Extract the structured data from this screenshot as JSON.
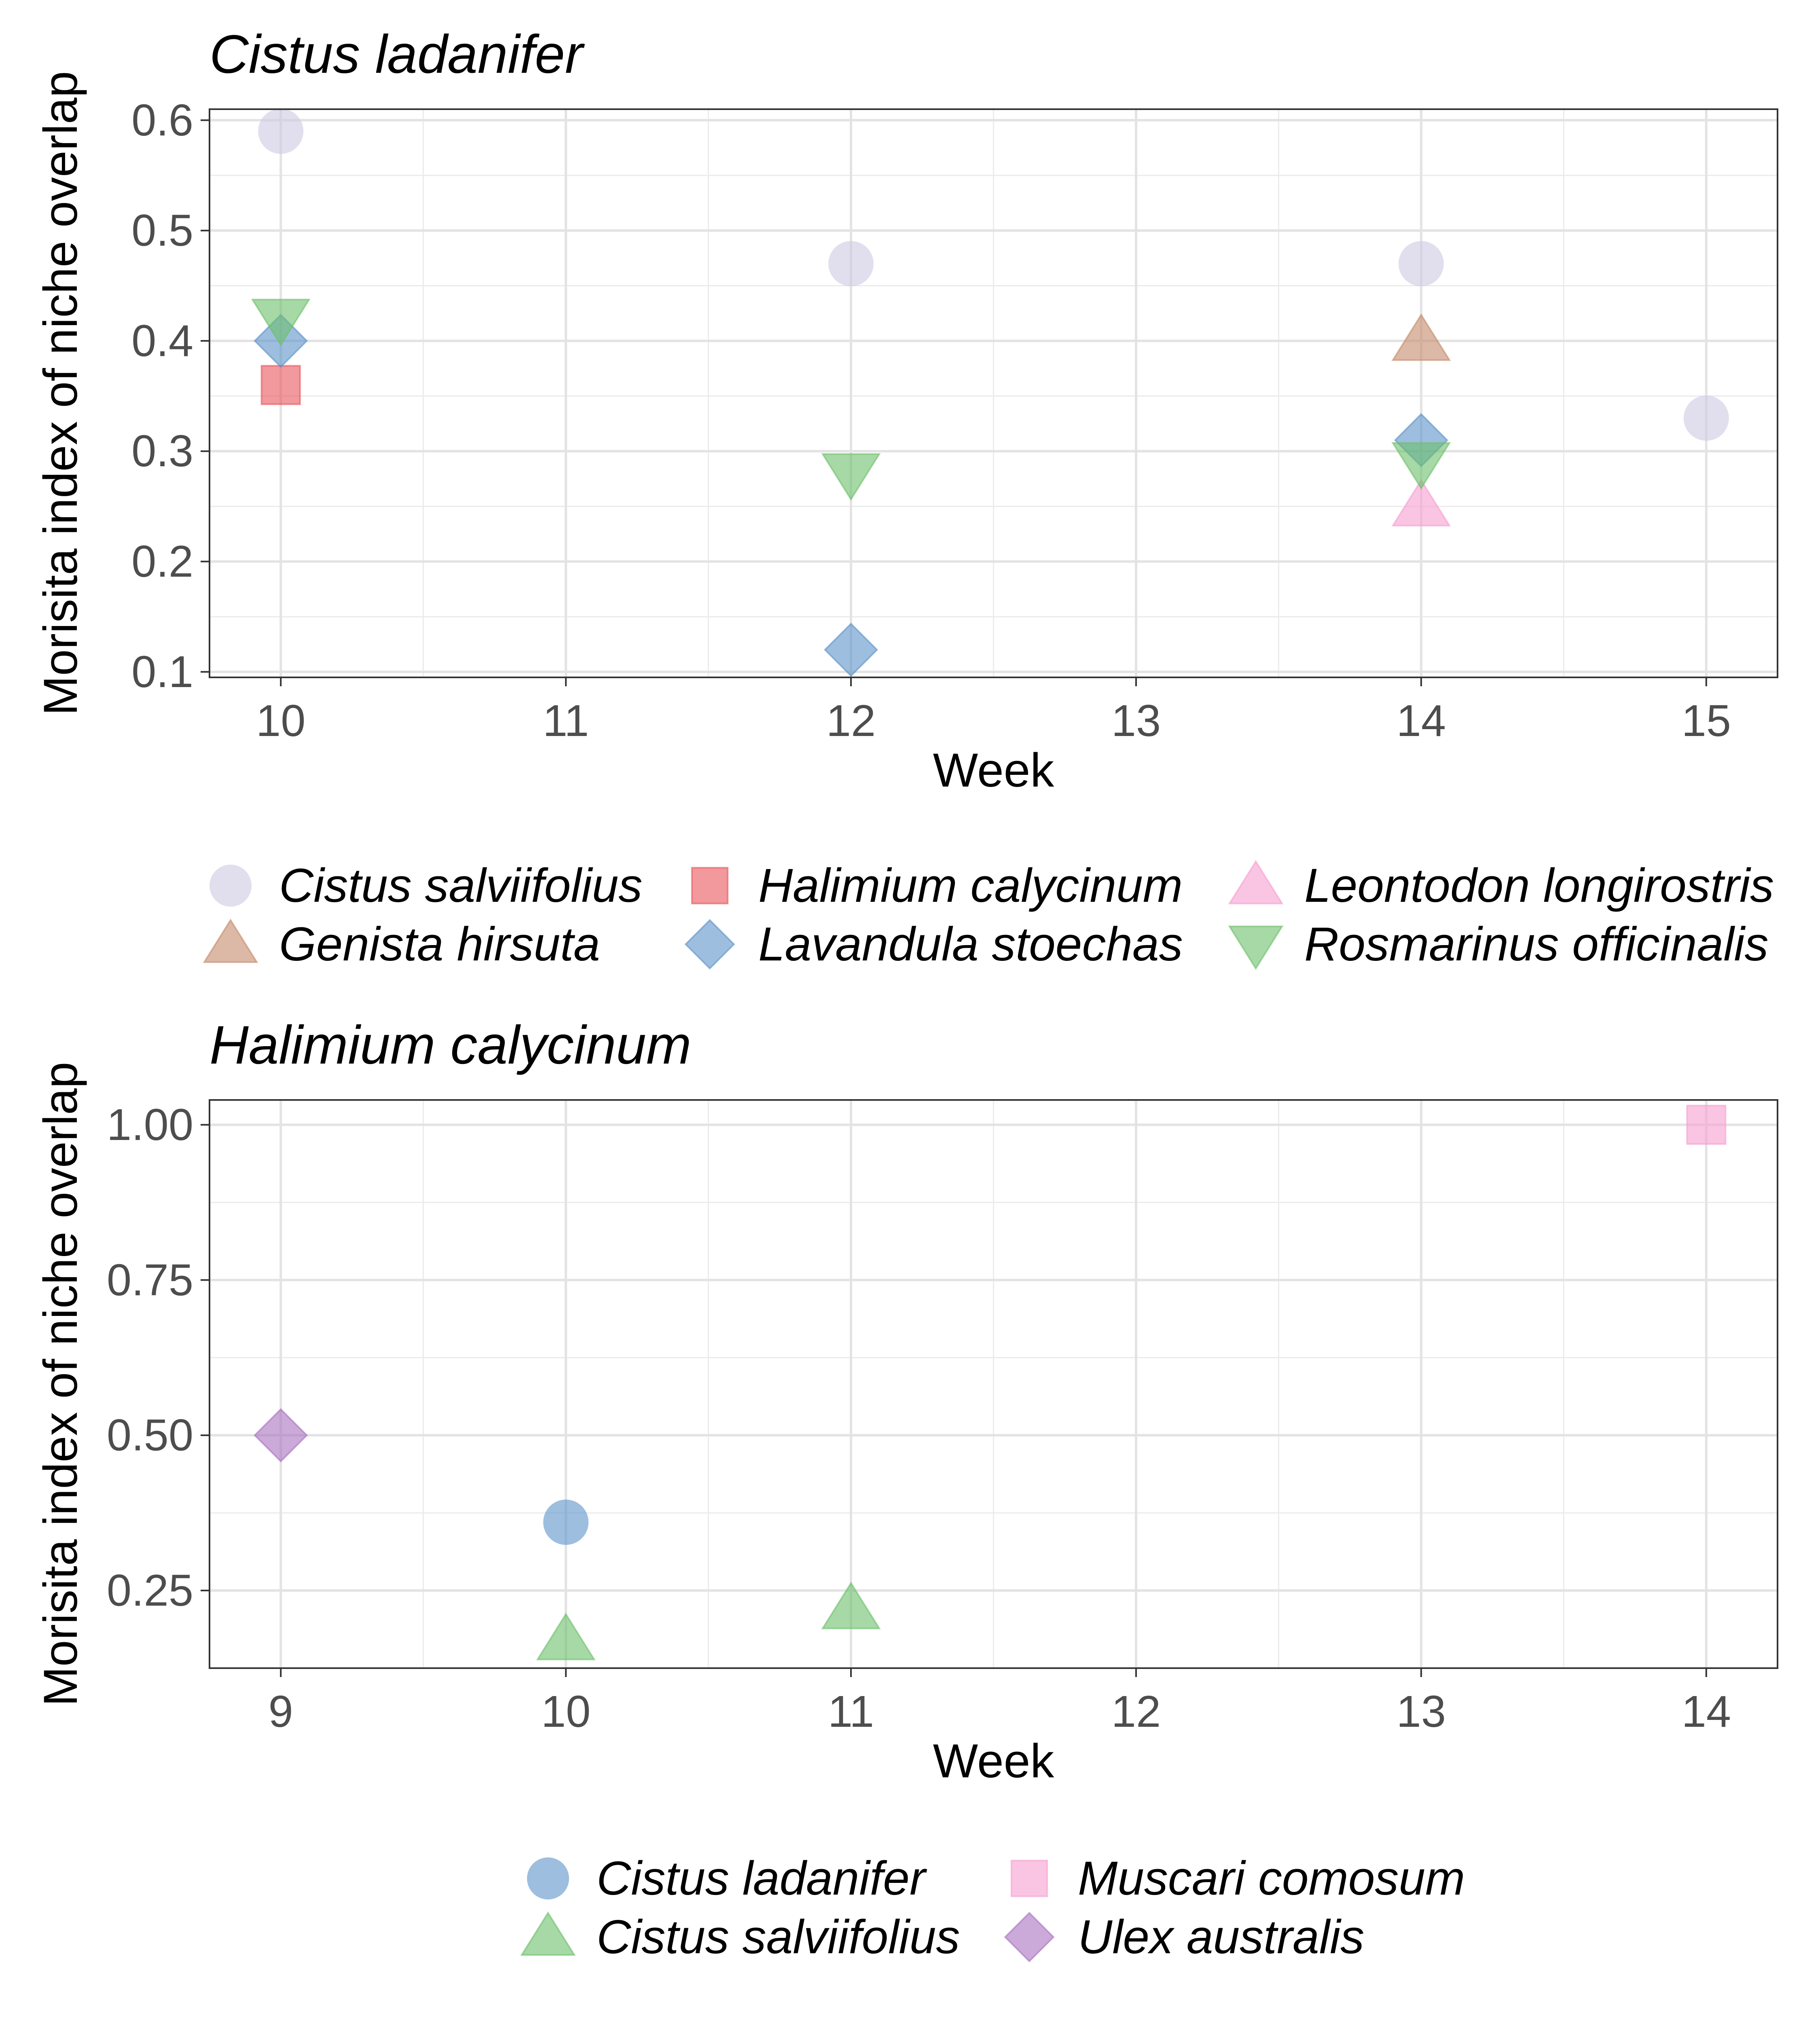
{
  "chart_data": [
    {
      "type": "scatter",
      "title": "Cistus ladanifer",
      "xlabel": "Week",
      "ylabel": "Morisita index of niche overlap",
      "xlim": [
        9.75,
        15.25
      ],
      "ylim": [
        0.095,
        0.61
      ],
      "xticks": [
        10,
        11,
        12,
        13,
        14,
        15
      ],
      "xtick_labels": [
        "10",
        "11",
        "12",
        "13",
        "14",
        "15"
      ],
      "yticks": [
        0.1,
        0.2,
        0.3,
        0.4,
        0.5,
        0.6
      ],
      "ytick_labels": [
        "0.1",
        "0.2",
        "0.3",
        "0.4",
        "0.5",
        "0.6"
      ],
      "grid": true,
      "legend_position": "bottom",
      "series": [
        {
          "name": "Cistus salviifolius",
          "marker": "circle",
          "color": "#cdc9e3",
          "points": [
            {
              "x": 10,
              "y": 0.59
            },
            {
              "x": 12,
              "y": 0.47
            },
            {
              "x": 14,
              "y": 0.47
            },
            {
              "x": 15,
              "y": 0.33
            }
          ]
        },
        {
          "name": "Genista hirsuta",
          "marker": "triangle-up",
          "color": "#c58b6b",
          "points": [
            {
              "x": 14,
              "y": 0.4
            }
          ]
        },
        {
          "name": "Halimium calycinum",
          "marker": "square",
          "color": "#e8555a",
          "points": [
            {
              "x": 10,
              "y": 0.36
            }
          ]
        },
        {
          "name": "Lavandula stoechas",
          "marker": "diamond",
          "color": "#5b93c8",
          "points": [
            {
              "x": 10,
              "y": 0.4
            },
            {
              "x": 12,
              "y": 0.12
            },
            {
              "x": 14,
              "y": 0.31
            }
          ]
        },
        {
          "name": "Leontodon longirostris",
          "marker": "triangle-up",
          "color": "#f79fd0",
          "points": [
            {
              "x": 14,
              "y": 0.25
            }
          ]
        },
        {
          "name": "Rosmarinus officinalis",
          "marker": "triangle-down",
          "color": "#6cc06a",
          "points": [
            {
              "x": 10,
              "y": 0.42
            },
            {
              "x": 12,
              "y": 0.28
            },
            {
              "x": 14,
              "y": 0.29
            }
          ]
        }
      ]
    },
    {
      "type": "scatter",
      "title": "Halimium calycinum",
      "xlabel": "Week",
      "ylabel": "Morisita index of niche overlap",
      "xlim": [
        8.75,
        14.25
      ],
      "ylim": [
        0.125,
        1.04
      ],
      "xticks": [
        9,
        10,
        11,
        12,
        13,
        14
      ],
      "xtick_labels": [
        "9",
        "10",
        "11",
        "12",
        "13",
        "14"
      ],
      "yticks": [
        0.25,
        0.5,
        0.75,
        1.0
      ],
      "ytick_labels": [
        "0.25",
        "0.50",
        "0.75",
        "1.00"
      ],
      "grid": true,
      "legend_position": "bottom",
      "series": [
        {
          "name": "Cistus ladanifer",
          "marker": "circle",
          "color": "#5b93c8",
          "points": [
            {
              "x": 10,
              "y": 0.36
            }
          ]
        },
        {
          "name": "Cistus salviifolius",
          "marker": "triangle-up",
          "color": "#6cc06a",
          "points": [
            {
              "x": 10,
              "y": 0.17
            },
            {
              "x": 11,
              "y": 0.22
            }
          ]
        },
        {
          "name": "Muscari comosum",
          "marker": "square",
          "color": "#f79fd0",
          "points": [
            {
              "x": 14,
              "y": 1.0
            }
          ]
        },
        {
          "name": "Ulex australis",
          "marker": "diamond",
          "color": "#a872bf",
          "points": [
            {
              "x": 9,
              "y": 0.5
            }
          ]
        }
      ]
    }
  ]
}
